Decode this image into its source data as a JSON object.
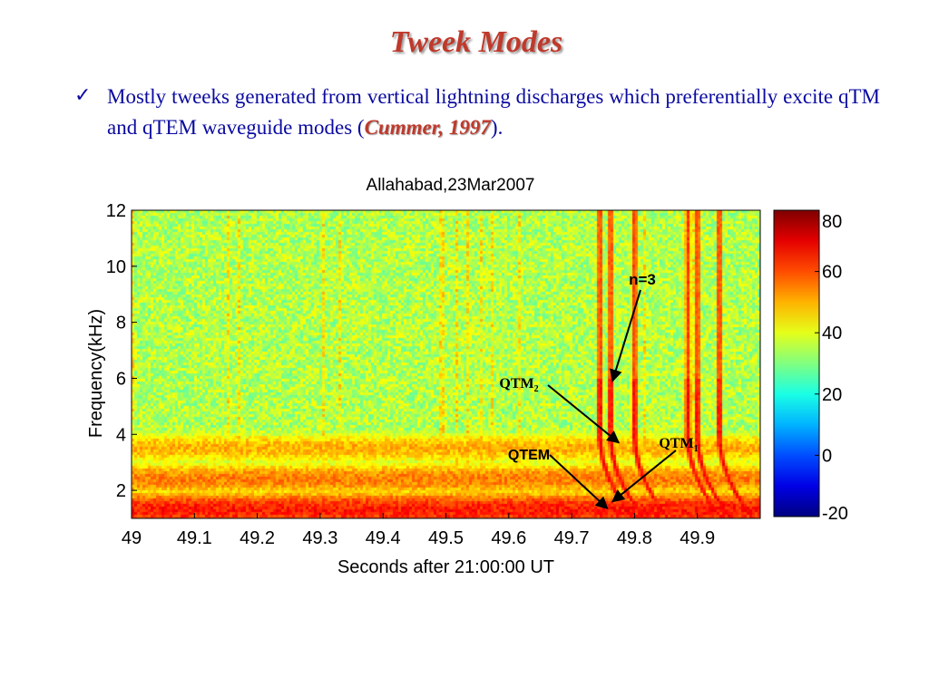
{
  "slide": {
    "title": "Tweek Modes",
    "bullet_icon": "checkmark-icon",
    "bullet_text": "Mostly tweeks generated from vertical lightning discharges which preferentially excite qTM  and qTEM waveguide modes (",
    "citation": "Cummer, 1997",
    "bullet_end": ")."
  },
  "colors": {
    "title": "#c0392b",
    "text": "#0a0aa0",
    "citation": "#c0392b"
  },
  "chart_data": {
    "type": "heatmap",
    "title": "Allahabad,23Mar2007",
    "xlabel": "Seconds after 21:00:00 UT",
    "ylabel": "Frequency(kHz)",
    "xlim": [
      49.0,
      50.0
    ],
    "ylim": [
      1.0,
      12.0
    ],
    "x_ticks": [
      "49",
      "49.1",
      "49.2",
      "49.3",
      "49.4",
      "49.5",
      "49.6",
      "49.7",
      "49.8",
      "49.9"
    ],
    "y_ticks": [
      "2",
      "4",
      "6",
      "8",
      "10",
      "12"
    ],
    "colorbar": {
      "min": -20,
      "max": 80,
      "ticks": [
        "80",
        "60",
        "40",
        "20",
        "0",
        "-20"
      ],
      "colormap": "jet"
    },
    "background_level": 35,
    "horizontal_bands": [
      {
        "freq_khz": 1.3,
        "level": 65
      },
      {
        "freq_khz": 2.4,
        "level": 55
      },
      {
        "freq_khz": 3.5,
        "level": 50
      }
    ],
    "tweek_times_s": [
      49.745,
      49.762,
      49.8,
      49.885,
      49.9,
      49.935
    ],
    "annotations": [
      {
        "label": "n=3",
        "point": [
          49.765,
          5.9
        ]
      },
      {
        "label": "QTM",
        "subscript": "2",
        "point": [
          49.775,
          3.7
        ]
      },
      {
        "label": "QTEM",
        "point": [
          49.757,
          1.35
        ]
      },
      {
        "label": "QTM",
        "subscript": "1",
        "point": [
          49.765,
          1.6
        ]
      }
    ]
  }
}
